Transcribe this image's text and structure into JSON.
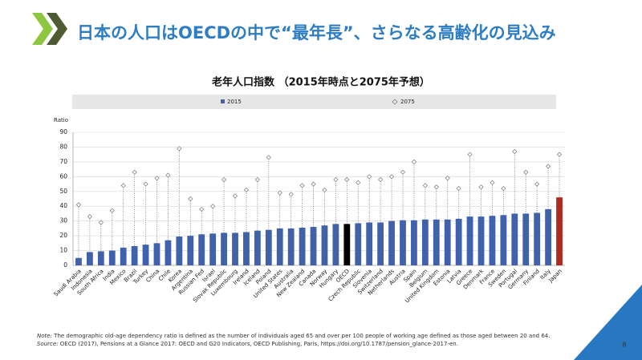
{
  "header": {
    "title": "日本の人口はOECDの中で“最年長”、さらなる高齢化の見込み"
  },
  "chart_data": {
    "type": "bar-marker",
    "title": "老年人口指数 （2015年時点と2075年予想）",
    "y_label": "Ratio",
    "categories": [
      "Saudi Arabia",
      "Indonesia",
      "South Africa",
      "India",
      "Mexico",
      "Brazil",
      "Turkey",
      "China",
      "Chile",
      "Korea",
      "Argentina",
      "Russian Fed",
      "Israel",
      "Slovak Republic",
      "Luxembourg",
      "Ireland",
      "Iceland",
      "Poland",
      "United States",
      "Australia",
      "New Zealand",
      "Canada",
      "Norway",
      "Hungary",
      "OECD",
      "Czech Republic",
      "Slovenia",
      "Switzerland",
      "Netherlands",
      "Austria",
      "Spain",
      "Belgium",
      "United Kingdom",
      "Estonia",
      "Latvia",
      "Greece",
      "Denmark",
      "France",
      "Sweden",
      "Portugal",
      "Germany",
      "Finland",
      "Italy",
      "Japan"
    ],
    "series": [
      {
        "name": "2015",
        "color": "#3f62a8",
        "colors": [
          "#3f62a8",
          "#3f62a8",
          "#3f62a8",
          "#3f62a8",
          "#3f62a8",
          "#3f62a8",
          "#3f62a8",
          "#3f62a8",
          "#3f62a8",
          "#3f62a8",
          "#3f62a8",
          "#3f62a8",
          "#3f62a8",
          "#3f62a8",
          "#3f62a8",
          "#3f62a8",
          "#3f62a8",
          "#3f62a8",
          "#3f62a8",
          "#3f62a8",
          "#3f62a8",
          "#3f62a8",
          "#3f62a8",
          "#3f62a8",
          "#000000",
          "#3f62a8",
          "#3f62a8",
          "#3f62a8",
          "#3f62a8",
          "#3f62a8",
          "#3f62a8",
          "#3f62a8",
          "#3f62a8",
          "#3f62a8",
          "#3f62a8",
          "#3f62a8",
          "#3f62a8",
          "#3f62a8",
          "#3f62a8",
          "#3f62a8",
          "#3f62a8",
          "#3f62a8",
          "#3f62a8",
          "#b02a22"
        ],
        "values": [
          5,
          9,
          9.5,
          10,
          12,
          13,
          14,
          15,
          17,
          19.5,
          20,
          21,
          21.5,
          22,
          22,
          22.5,
          23.5,
          24,
          25,
          25,
          25.5,
          26,
          27,
          28,
          28,
          28.5,
          29,
          29,
          30,
          30.5,
          30.5,
          31,
          31,
          31,
          31.5,
          33,
          33,
          33.5,
          34,
          35,
          35,
          35.5,
          38,
          46
        ]
      },
      {
        "name": "2075",
        "color": "#777777",
        "values": [
          41,
          33,
          29,
          37,
          54,
          63,
          55,
          59,
          61,
          79,
          45,
          38,
          40,
          58,
          47,
          51,
          58,
          73,
          49,
          48,
          54,
          55,
          51,
          58,
          58,
          56,
          60,
          58,
          60,
          63,
          70,
          54,
          53,
          59,
          52,
          75,
          53,
          56,
          52,
          77,
          63,
          55,
          67,
          75
        ]
      }
    ],
    "ylim": [
      0,
      90
    ],
    "yticks": [
      0,
      10,
      20,
      30,
      40,
      50,
      60,
      70,
      80,
      90
    ],
    "grid": true
  },
  "notes": {
    "note_label": "Note:",
    "note": " The demographic old-age dependency ratio is defined as the number of individuals aged 65 and over per 100 people of working age defined as those aged between 20 and 64.",
    "source_label": "Source:",
    "source": " OECD (2017), Pensions at a Glance 2017: OECD and G20 Indicators, OECD Publishing, Paris, https://doi.org/10.1787/pension_glance-2017-en."
  },
  "page_number": "8"
}
